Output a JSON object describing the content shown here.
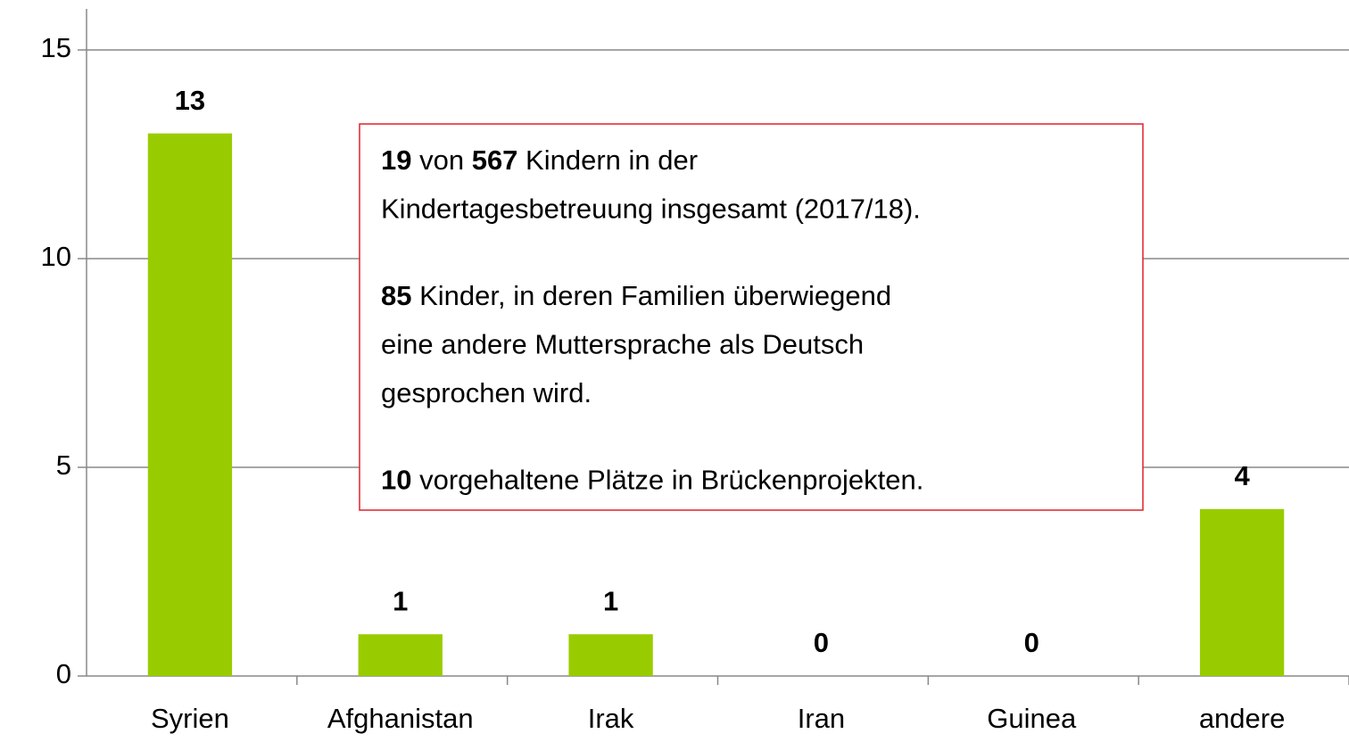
{
  "chart_data": {
    "type": "bar",
    "categories": [
      "Syrien",
      "Afghanistan",
      "Irak",
      "Iran",
      "Guinea",
      "andere"
    ],
    "values": [
      13,
      1,
      1,
      0,
      0,
      4
    ],
    "color": "#99cc00",
    "ylim": [
      0,
      15
    ],
    "yticks": [
      0,
      5,
      10,
      15
    ],
    "grid": true,
    "annotation": [
      [
        [
          {
            "text": "19",
            "bold": true
          },
          {
            "text": " von "
          },
          {
            "text": "567",
            "bold": true
          },
          {
            "text": " Kindern in der"
          }
        ],
        [
          {
            "text": "Kindertagesbetreuung insgesamt (2017/18)."
          }
        ]
      ],
      [
        [
          {
            "text": "85",
            "bold": true
          },
          {
            "text": " Kinder, in deren Familien überwiegend"
          }
        ],
        [
          {
            "text": "eine andere Muttersprache als Deutsch"
          }
        ],
        [
          {
            "text": "gesprochen wird."
          }
        ]
      ],
      [
        [
          {
            "text": "10",
            "bold": true
          },
          {
            "text": " vorgehaltene Plätze in Brückenprojekten."
          }
        ]
      ]
    ]
  }
}
